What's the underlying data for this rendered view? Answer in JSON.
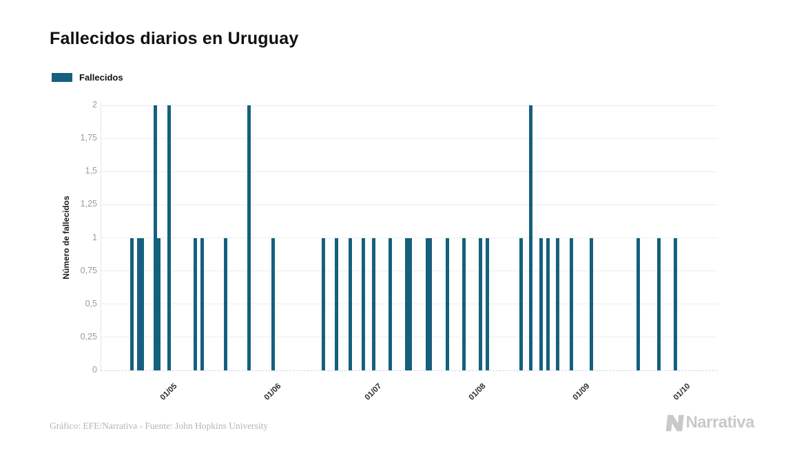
{
  "header": {
    "title": "Fallecidos diarios en Uruguay"
  },
  "legend": {
    "label": "Fallecidos",
    "swatch_color": "#15607d"
  },
  "chart_data": {
    "type": "bar",
    "title": "Fallecidos diarios en Uruguay",
    "xlabel": "",
    "ylabel": "Número de fallecidos",
    "ylim": [
      0,
      2
    ],
    "grid": "horizontal",
    "legend_position": "top-left",
    "bar_color": "#15607d",
    "y_ticks": [
      {
        "label": "0",
        "value": 0
      },
      {
        "label": "0,25",
        "value": 0.25
      },
      {
        "label": "0,5",
        "value": 0.5
      },
      {
        "label": "0,75",
        "value": 0.75
      },
      {
        "label": "1",
        "value": 1
      },
      {
        "label": "1,25",
        "value": 1.25
      },
      {
        "label": "1,5",
        "value": 1.5
      },
      {
        "label": "1,75",
        "value": 1.75
      },
      {
        "label": "2",
        "value": 2
      }
    ],
    "x_ticks": [
      "01/05",
      "01/06",
      "01/07",
      "01/08",
      "01/09",
      "01/10"
    ],
    "series": [
      {
        "name": "Fallecidos",
        "points": [
          {
            "date": "20/04",
            "value": 1
          },
          {
            "date": "22/04",
            "value": 1
          },
          {
            "date": "23/04",
            "value": 1
          },
          {
            "date": "27/04",
            "value": 2
          },
          {
            "date": "28/04",
            "value": 1
          },
          {
            "date": "01/05",
            "value": 2
          },
          {
            "date": "09/05",
            "value": 1
          },
          {
            "date": "11/05",
            "value": 1
          },
          {
            "date": "18/05",
            "value": 1
          },
          {
            "date": "25/05",
            "value": 2
          },
          {
            "date": "01/06",
            "value": 1
          },
          {
            "date": "16/06",
            "value": 1
          },
          {
            "date": "20/06",
            "value": 1
          },
          {
            "date": "24/06",
            "value": 1
          },
          {
            "date": "28/06",
            "value": 1
          },
          {
            "date": "01/07",
            "value": 1
          },
          {
            "date": "06/07",
            "value": 1
          },
          {
            "date": "11/07",
            "value": 1
          },
          {
            "date": "12/07",
            "value": 1
          },
          {
            "date": "17/07",
            "value": 1
          },
          {
            "date": "18/07",
            "value": 1
          },
          {
            "date": "23/07",
            "value": 1
          },
          {
            "date": "28/07",
            "value": 1
          },
          {
            "date": "02/08",
            "value": 1
          },
          {
            "date": "04/08",
            "value": 1
          },
          {
            "date": "14/08",
            "value": 1
          },
          {
            "date": "17/08",
            "value": 2
          },
          {
            "date": "20/08",
            "value": 1
          },
          {
            "date": "22/08",
            "value": 1
          },
          {
            "date": "25/08",
            "value": 1
          },
          {
            "date": "29/08",
            "value": 1
          },
          {
            "date": "04/09",
            "value": 1
          },
          {
            "date": "18/09",
            "value": 1
          },
          {
            "date": "24/09",
            "value": 1
          },
          {
            "date": "29/09",
            "value": 1
          }
        ]
      }
    ]
  },
  "footer": {
    "credit": "Gráfico: EFE/Narrativa - Fuente: John Hopkins University"
  },
  "branding": {
    "logo_text": "Narrativa"
  }
}
